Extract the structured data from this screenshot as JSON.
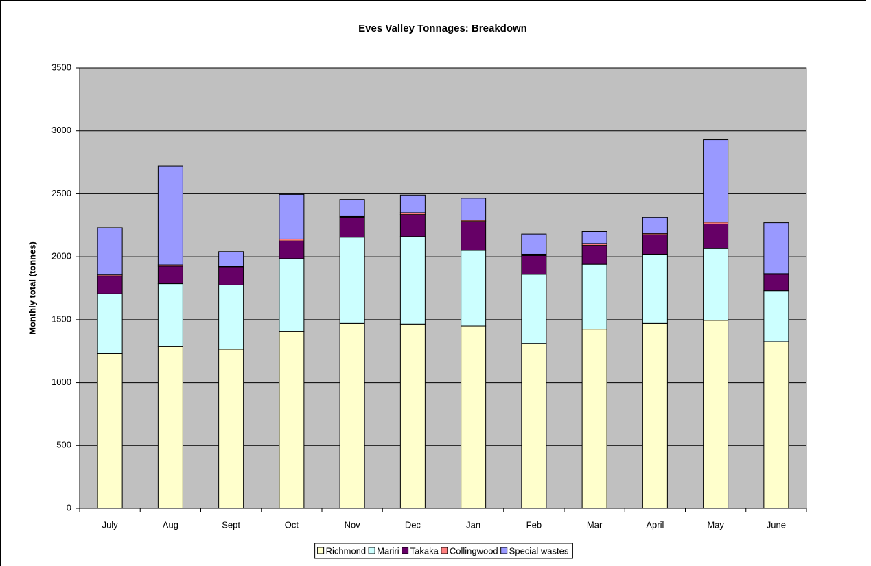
{
  "chart_data": {
    "type": "stacked_bar",
    "title": "Eves Valley Tonnages: Breakdown",
    "y_label": "Monthly total (tonnes)",
    "categories": [
      "July",
      "Aug",
      "Sept",
      "Oct",
      "Nov",
      "Dec",
      "Jan",
      "Feb",
      "Mar",
      "April",
      "May",
      "June"
    ],
    "series": [
      {
        "name": "Richmond",
        "color": "#ffffcc",
        "values": [
          1230,
          1285,
          1265,
          1405,
          1470,
          1465,
          1450,
          1310,
          1425,
          1470,
          1495,
          1325
        ]
      },
      {
        "name": "Mariri",
        "color": "#ccffff",
        "values": [
          475,
          500,
          510,
          580,
          685,
          695,
          600,
          550,
          515,
          550,
          570,
          405
        ]
      },
      {
        "name": "Takaka",
        "color": "#660066",
        "values": [
          140,
          140,
          145,
          140,
          155,
          175,
          230,
          150,
          150,
          155,
          195,
          130
        ]
      },
      {
        "name": "Collingwood",
        "color": "#ff8080",
        "values": [
          10,
          10,
          2,
          15,
          10,
          15,
          10,
          10,
          15,
          10,
          15,
          5
        ]
      },
      {
        "name": "Special wastes",
        "color": "#9999ff",
        "values": [
          375,
          785,
          118,
          355,
          135,
          140,
          175,
          160,
          95,
          125,
          655,
          405
        ]
      }
    ],
    "ylim": [
      0,
      3500
    ],
    "yticks": [
      0,
      500,
      1000,
      1500,
      2000,
      2500,
      3000,
      3500
    ],
    "grid": true,
    "legend": "bottom",
    "plot_background": "#c0c0c0"
  }
}
